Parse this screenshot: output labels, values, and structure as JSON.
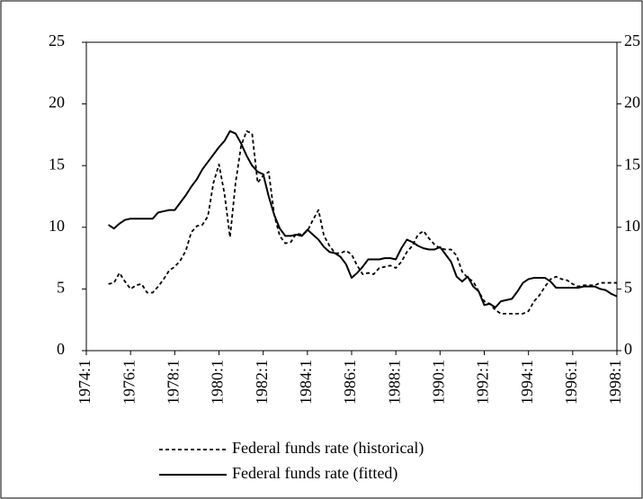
{
  "chart_data": {
    "type": "line",
    "categories": [
      "1974:1",
      null,
      null,
      null,
      null,
      null,
      null,
      null,
      "1976:1",
      null,
      null,
      null,
      null,
      null,
      null,
      null,
      "1978:1",
      null,
      null,
      null,
      null,
      null,
      null,
      null,
      "1980:1",
      null,
      null,
      null,
      null,
      null,
      null,
      null,
      "1982:1",
      null,
      null,
      null,
      null,
      null,
      null,
      null,
      "1984:1",
      null,
      null,
      null,
      null,
      null,
      null,
      null,
      "1986:1",
      null,
      null,
      null,
      null,
      null,
      null,
      null,
      "1988:1",
      null,
      null,
      null,
      null,
      null,
      null,
      null,
      "1990:1",
      null,
      null,
      null,
      null,
      null,
      null,
      null,
      "1992:1",
      null,
      null,
      null,
      null,
      null,
      null,
      null,
      "1994:1",
      null,
      null,
      null,
      null,
      null,
      null,
      null,
      "1996:1",
      null,
      null,
      null,
      null,
      null,
      null,
      null,
      "1998:1"
    ],
    "series": [
      {
        "name": "Federal funds rate (historical)",
        "color": "#000000",
        "dash": true,
        "values": [
          null,
          null,
          null,
          null,
          5.4,
          5.5,
          6.3,
          5.6,
          5.0,
          5.3,
          5.4,
          4.7,
          4.7,
          5.2,
          5.8,
          6.5,
          6.8,
          7.3,
          8.1,
          9.6,
          10.1,
          10.2,
          10.9,
          13.6,
          15.1,
          12.7,
          9.2,
          13.6,
          16.6,
          17.8,
          17.6,
          13.6,
          14.2,
          14.5,
          11.0,
          9.3,
          8.7,
          8.8,
          9.5,
          9.4,
          9.7,
          10.6,
          11.4,
          9.3,
          8.5,
          7.9,
          7.9,
          8.1,
          7.8,
          6.9,
          6.2,
          6.3,
          6.2,
          6.7,
          6.8,
          6.9,
          6.7,
          7.2,
          8.0,
          8.5,
          9.4,
          9.7,
          9.1,
          8.6,
          8.3,
          8.2,
          8.2,
          7.7,
          6.4,
          5.9,
          5.6,
          4.8,
          4.0,
          3.8,
          3.3,
          3.0,
          3.0,
          3.0,
          3.0,
          3.0,
          3.2,
          4.0,
          4.5,
          5.2,
          5.8,
          6.0,
          5.8,
          5.7,
          5.4,
          5.2,
          5.3,
          5.3,
          5.3,
          5.5,
          5.5,
          5.5,
          5.5
        ]
      },
      {
        "name": "Federal funds rate (fitted)",
        "color": "#000000",
        "dash": false,
        "values": [
          null,
          null,
          null,
          null,
          10.2,
          9.9,
          10.3,
          10.6,
          10.7,
          10.7,
          10.7,
          10.7,
          10.7,
          11.2,
          11.3,
          11.4,
          11.4,
          12.0,
          12.6,
          13.3,
          13.9,
          14.7,
          15.3,
          15.9,
          16.5,
          17.0,
          17.8,
          17.6,
          16.8,
          15.8,
          15.0,
          14.5,
          14.3,
          12.5,
          11.0,
          9.9,
          9.3,
          9.3,
          9.4,
          9.3,
          9.8,
          9.4,
          9.0,
          8.4,
          8.0,
          7.9,
          7.6,
          7.0,
          5.9,
          6.3,
          6.8,
          7.4,
          7.4,
          7.4,
          7.5,
          7.5,
          7.4,
          8.3,
          9.0,
          8.8,
          8.5,
          8.3,
          8.2,
          8.2,
          8.4,
          7.8,
          7.2,
          6.0,
          5.6,
          6.0,
          5.2,
          4.8,
          3.7,
          3.8,
          3.5,
          4.0,
          4.1,
          4.2,
          4.8,
          5.5,
          5.8,
          5.9,
          5.9,
          5.9,
          5.6,
          5.1,
          5.1,
          5.1,
          5.1,
          5.1,
          5.2,
          5.2,
          5.2,
          5.0,
          4.9,
          4.6,
          4.4
        ]
      }
    ],
    "ylim": [
      0,
      25
    ],
    "yticks": [
      0,
      5,
      10,
      15,
      20,
      25
    ],
    "grid": false,
    "legend": "bottom"
  }
}
